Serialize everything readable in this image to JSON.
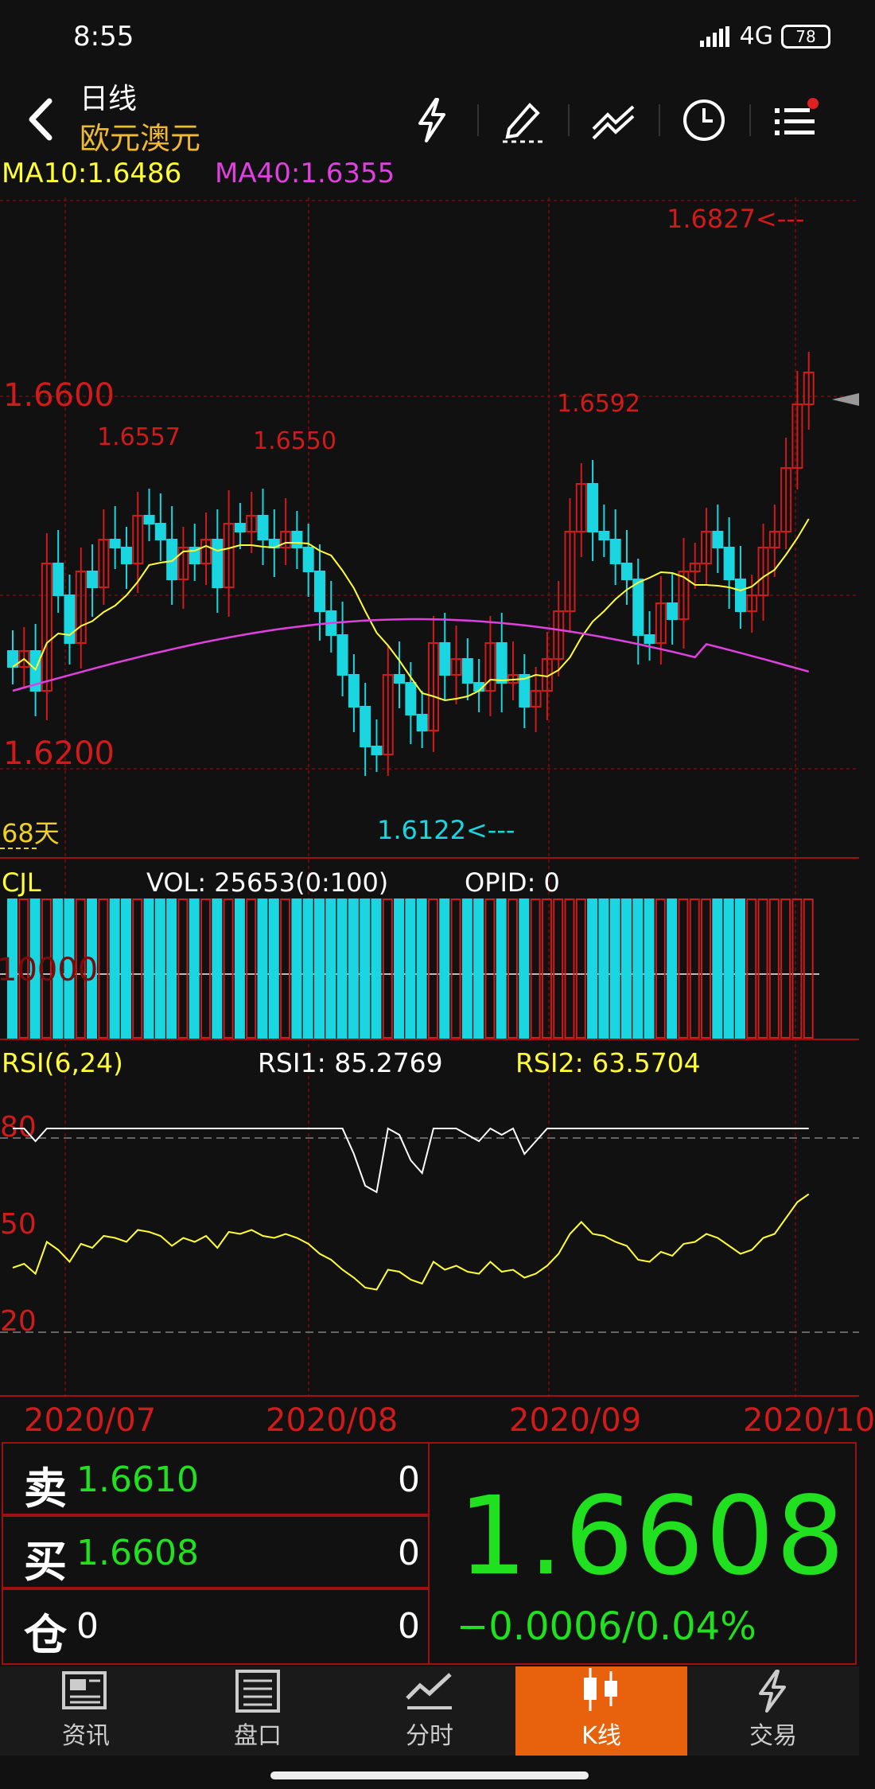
{
  "status_bar": {
    "time": "8:55",
    "network": "4G",
    "battery": "78"
  },
  "header": {
    "title": "日线",
    "subtitle": "欧元澳元"
  },
  "nav_icons": [
    "lightning-icon",
    "draw-pen-icon",
    "trend-line-icon",
    "clock-icon",
    "menu-list-icon"
  ],
  "indicators": {
    "ma10": "MA10:1.6486",
    "ma40": "MA40:1.6355"
  },
  "colors": {
    "up": "#d11a1a",
    "down": "#19d6e0",
    "ma10": "#ffff33",
    "ma40": "#e040e0",
    "price": "#20e020"
  },
  "kline": {
    "price_labels": [
      "1.6600",
      "1.6200"
    ],
    "annotations": {
      "high": "1.6827<---",
      "low": "1.6122<---",
      "p1": "1.6557",
      "p2": "1.6550",
      "p3": "1.6592"
    },
    "days_label": "68天"
  },
  "volume": {
    "name": "CJL",
    "vol": "VOL: 25653(0:100)",
    "opid": "OPID: 0",
    "level": "10000"
  },
  "rsi": {
    "name": "RSI(6,24)",
    "rsi1": "RSI1: 85.2769",
    "rsi2": "RSI2: 63.5704",
    "levels": [
      "80",
      "50",
      "20"
    ]
  },
  "dates": [
    "2020/07",
    "2020/08",
    "2020/09",
    "2020/10"
  ],
  "quote": {
    "sell_label": "卖",
    "sell_price": "1.6610",
    "sell_qty": "0",
    "buy_label": "买",
    "buy_price": "1.6608",
    "buy_qty": "0",
    "pos_label": "仓",
    "pos_value": "0",
    "pos_qty": "0",
    "last": "1.6608",
    "change": "−0.0006/0.04%"
  },
  "tabs": [
    {
      "label": "资讯",
      "icon": "news-icon"
    },
    {
      "label": "盘口",
      "icon": "orderbook-icon"
    },
    {
      "label": "分时",
      "icon": "timeshare-icon"
    },
    {
      "label": "K线",
      "icon": "candlestick-icon"
    },
    {
      "label": "交易",
      "icon": "trade-icon"
    }
  ],
  "active_tab": 3
}
